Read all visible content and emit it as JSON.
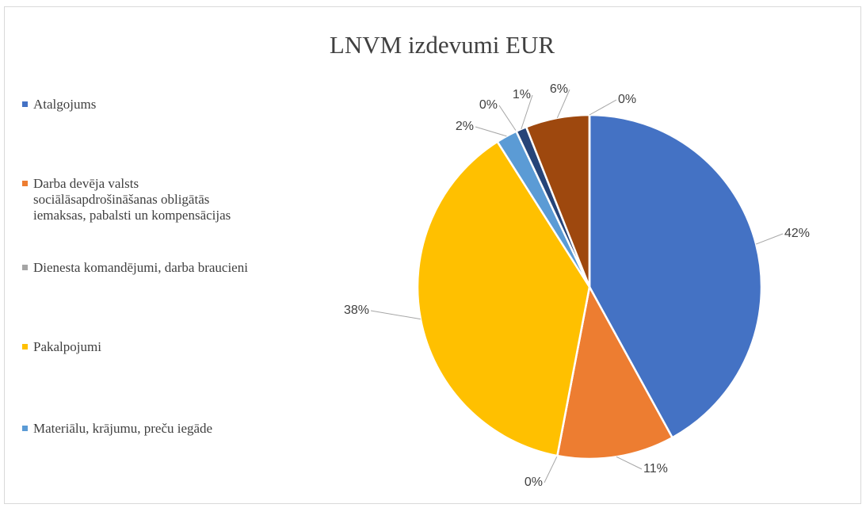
{
  "chart_data": {
    "type": "pie",
    "title": "LNVM izdevumi EUR",
    "categories": [
      "Atalgojums",
      "Darba devēja valsts sociālāsapdrošināšanas obligātās iemaksas, pabalsti un kompensācijas",
      "Dienesta komandējumi, darba braucieni",
      "Pakalpojumi",
      "Materiālu, krājumu, preču iegāde",
      null,
      null,
      null,
      null
    ],
    "values": [
      42,
      11,
      0,
      38,
      2,
      0,
      1,
      6,
      0
    ],
    "value_labels": [
      "42%",
      "11%",
      "0%",
      "38%",
      "2%",
      "0%",
      "1%",
      "6%",
      "0%"
    ],
    "colors": [
      "#4472c4",
      "#ed7d31",
      "#a5a5a5",
      "#ffc000",
      "#5b9bd5",
      "#70ad47",
      "#264478",
      "#9e480e",
      "#636363"
    ],
    "legend": "left"
  }
}
